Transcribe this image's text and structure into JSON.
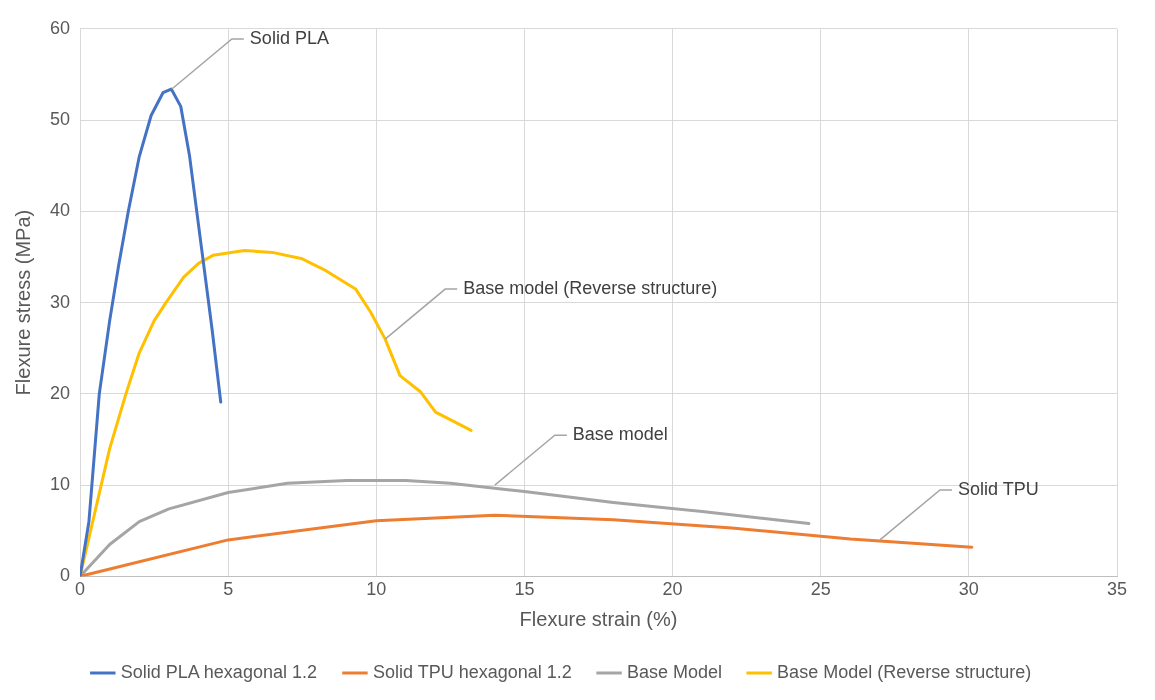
{
  "chart_data": {
    "type": "line",
    "xlabel": "Flexure strain (%)",
    "ylabel": "Flexure stress (MPa)",
    "xlim": [
      0,
      35
    ],
    "xticks": [
      0,
      5,
      10,
      15,
      20,
      25,
      30,
      35
    ],
    "ylim": [
      0,
      60
    ],
    "yticks": [
      0,
      10,
      20,
      30,
      40,
      50,
      60
    ],
    "grid": true,
    "legend": "bottom",
    "marker": "none",
    "line_style": "solid",
    "series": [
      {
        "name": "Solid PLA hexagonal 1.2",
        "color": "#4472c4",
        "x": [
          0,
          0.3,
          0.65,
          1.0,
          1.3,
          1.63,
          2.0,
          2.4,
          2.8,
          3.08,
          3.4,
          3.7,
          4.1,
          4.46,
          4.75
        ],
        "values": [
          0,
          6,
          20,
          28,
          34,
          40,
          46,
          50.5,
          53,
          53.4,
          51.5,
          46,
          36,
          27,
          19.1
        ]
      },
      {
        "name": "Solid TPU hexagonal 1.2",
        "color": "#ed7d31",
        "x": [
          0,
          5,
          10,
          14,
          18,
          22,
          26,
          30.1
        ],
        "values": [
          0,
          4,
          6.1,
          6.7,
          6.2,
          5.3,
          4.1,
          3.2
        ]
      },
      {
        "name": "Base Model",
        "color": "#a5a5a5",
        "x": [
          0,
          1,
          2,
          3,
          5,
          7,
          9,
          11,
          12.5,
          15,
          18,
          21,
          24.6
        ],
        "values": [
          0,
          3.5,
          6,
          7.4,
          9.2,
          10.2,
          10.5,
          10.5,
          10.2,
          9.3,
          8.1,
          7.1,
          5.8
        ]
      },
      {
        "name": "Base Model (Reverse structure)",
        "color": "#ffc000",
        "x": [
          0,
          0.5,
          1,
          1.55,
          2,
          2.5,
          2.9,
          3.5,
          4,
          4.5,
          5.55,
          6.5,
          7.5,
          8.3,
          9.3,
          9.8,
          10.3,
          10.8,
          11.5,
          12,
          13.2
        ],
        "values": [
          0,
          7,
          14,
          20,
          24.5,
          28,
          30,
          32.8,
          34.3,
          35.2,
          35.7,
          35.5,
          34.8,
          33.5,
          31.5,
          29,
          26,
          22,
          20.2,
          18,
          16
        ]
      }
    ],
    "annotations": [
      {
        "text": "Solid PLA",
        "x": 3.1,
        "y": 53.4
      },
      {
        "text": "Base model (Reverse structure)",
        "x": 10.3,
        "y": 26
      },
      {
        "text": "Base model",
        "x": 14,
        "y": 10
      },
      {
        "text": "Solid TPU",
        "x": 27,
        "y": 4
      }
    ]
  }
}
